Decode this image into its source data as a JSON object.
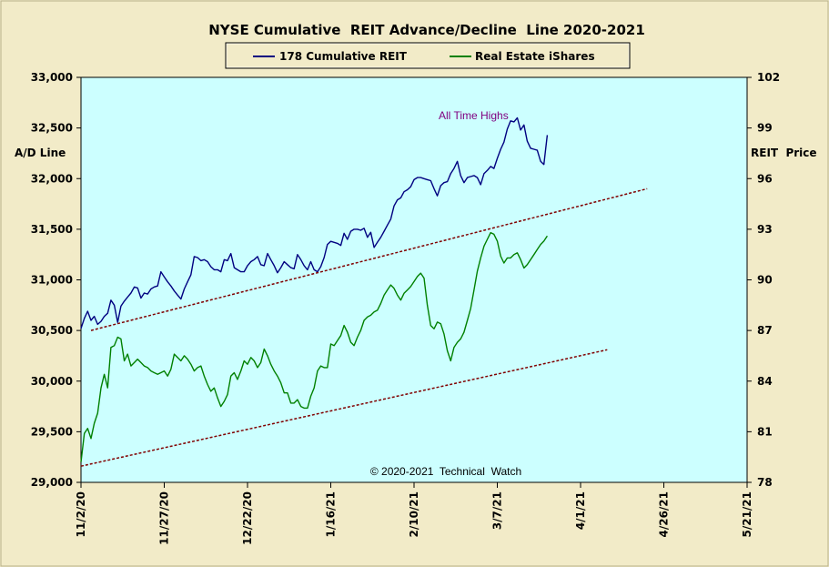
{
  "chart_data": {
    "type": "line",
    "title": "NYSE Cumulative  REIT Advance/Decline  Line 2020-2021",
    "legend": {
      "placement": "top-center",
      "entries": [
        "178 Cumulative REIT",
        "Real Estate iShares"
      ]
    },
    "ylabel_left": "A/D Line",
    "ylabel_right": "REIT  Price",
    "ylim_left": [
      29000,
      33000
    ],
    "ylim_right": [
      78,
      102
    ],
    "left_ticks": [
      "29,000",
      "29,500",
      "30,000",
      "30,500",
      "31,000",
      "31,500",
      "32,000",
      "32,500",
      "33,000"
    ],
    "left_tick_values": [
      29000,
      29500,
      30000,
      30500,
      31000,
      31500,
      32000,
      32500,
      33000
    ],
    "right_ticks": [
      "78",
      "81",
      "84",
      "87",
      "90",
      "93",
      "96",
      "99",
      "102"
    ],
    "right_tick_values": [
      78,
      81,
      84,
      87,
      90,
      93,
      96,
      99,
      102
    ],
    "x_ticks": [
      "11/2/20",
      "11/27/20",
      "12/22/20",
      "1/16/21",
      "2/10/21",
      "3/7/21",
      "4/1/21",
      "4/26/21",
      "5/21/21"
    ],
    "x_day_range": [
      0,
      200
    ],
    "grid": false,
    "colors": {
      "plot_bg": "#ccffff",
      "page_bg": "#f2ebc8",
      "ad_line": "#000080",
      "reit_line": "#008000",
      "trend": "#800000",
      "annotation": "#800080"
    },
    "annotations": [
      "All Time Highs"
    ],
    "copyright": "© 2020-2021  Technical  Watch",
    "series": [
      {
        "name": "178 Cumulative REIT",
        "axis": "left",
        "x": [
          0,
          1,
          2,
          3,
          4,
          5,
          6,
          7,
          8,
          9,
          10,
          11,
          12,
          13,
          14,
          15,
          16,
          17,
          18,
          19,
          20,
          21,
          22,
          23,
          24,
          25,
          26,
          27,
          28,
          29,
          30,
          31,
          32,
          33,
          34,
          35,
          36,
          37,
          38,
          39,
          40,
          41,
          42,
          43,
          44,
          45,
          46,
          47,
          48,
          49,
          50,
          51,
          52,
          53,
          54,
          55,
          56,
          57,
          58,
          59,
          60,
          61,
          62,
          63,
          64,
          65,
          66,
          67,
          68,
          69,
          70,
          71,
          72,
          73,
          74,
          75,
          76,
          77,
          78,
          79,
          80,
          81,
          82,
          83,
          84,
          85,
          86,
          87,
          88,
          89,
          90,
          91,
          92,
          93,
          94,
          95,
          96,
          97,
          98,
          99,
          100,
          101,
          102,
          103,
          104,
          105,
          106,
          107,
          108,
          109,
          110,
          111,
          112,
          113,
          114,
          115,
          116,
          117,
          118,
          119,
          120,
          121,
          122,
          123,
          124,
          125,
          126,
          127,
          128,
          129,
          130,
          131,
          132,
          133,
          134,
          135,
          136,
          137,
          138,
          139,
          140
        ],
        "values": [
          30520,
          30620,
          30690,
          30600,
          30640,
          30560,
          30590,
          30640,
          30670,
          30800,
          30750,
          30580,
          30740,
          30790,
          30830,
          30870,
          30930,
          30920,
          30820,
          30870,
          30860,
          30910,
          30930,
          30940,
          31080,
          31030,
          30980,
          30940,
          30890,
          30850,
          30810,
          30910,
          30980,
          31050,
          31230,
          31220,
          31190,
          31200,
          31180,
          31130,
          31100,
          31100,
          31080,
          31200,
          31190,
          31260,
          31120,
          31100,
          31080,
          31080,
          31140,
          31180,
          31200,
          31230,
          31150,
          31140,
          31260,
          31200,
          31140,
          31070,
          31120,
          31180,
          31150,
          31120,
          31110,
          31250,
          31200,
          31140,
          31100,
          31180,
          31100,
          31080,
          31130,
          31220,
          31350,
          31380,
          31370,
          31360,
          31340,
          31460,
          31400,
          31480,
          31500,
          31500,
          31490,
          31510,
          31420,
          31470,
          31320,
          31370,
          31420,
          31480,
          31540,
          31600,
          31730,
          31790,
          31810,
          31870,
          31890,
          31920,
          31990,
          32010,
          32010,
          32000,
          31990,
          31980,
          31900,
          31830,
          31930,
          31960,
          31970,
          32050,
          32100,
          32170,
          32030,
          31960,
          32010,
          32020,
          32030,
          32010,
          31940,
          32050,
          32080,
          32120,
          32100,
          32200,
          32290,
          32360,
          32490,
          32570,
          32560,
          32600,
          32480,
          32530,
          32370,
          32300,
          32290,
          32280,
          32170,
          32140,
          32430
        ]
      },
      {
        "name": "Real Estate iShares",
        "axis": "right",
        "x": [
          0,
          1,
          2,
          3,
          4,
          5,
          6,
          7,
          8,
          9,
          10,
          11,
          12,
          13,
          14,
          15,
          16,
          17,
          18,
          19,
          20,
          21,
          22,
          23,
          24,
          25,
          26,
          27,
          28,
          29,
          30,
          31,
          32,
          33,
          34,
          35,
          36,
          37,
          38,
          39,
          40,
          41,
          42,
          43,
          44,
          45,
          46,
          47,
          48,
          49,
          50,
          51,
          52,
          53,
          54,
          55,
          56,
          57,
          58,
          59,
          60,
          61,
          62,
          63,
          64,
          65,
          66,
          67,
          68,
          69,
          70,
          71,
          72,
          73,
          74,
          75,
          76,
          77,
          78,
          79,
          80,
          81,
          82,
          83,
          84,
          85,
          86,
          87,
          88,
          89,
          90,
          91,
          92,
          93,
          94,
          95,
          96,
          97,
          98,
          99,
          100,
          101,
          102,
          103,
          104,
          105,
          106,
          107,
          108,
          109,
          110,
          111,
          112,
          113,
          114,
          115,
          116,
          117,
          118,
          119,
          120,
          121,
          122,
          123,
          124,
          125,
          126,
          127,
          128,
          129,
          130,
          131,
          132,
          133,
          134,
          135,
          136,
          137,
          138,
          139,
          140
        ],
        "values": [
          79.2,
          80.9,
          81.2,
          80.6,
          81.5,
          82.1,
          83.6,
          84.4,
          83.6,
          86.0,
          86.1,
          86.6,
          86.5,
          85.2,
          85.6,
          84.9,
          85.1,
          85.3,
          85.1,
          84.9,
          84.8,
          84.6,
          84.5,
          84.4,
          84.5,
          84.6,
          84.3,
          84.7,
          85.6,
          85.4,
          85.2,
          85.5,
          85.3,
          85.0,
          84.6,
          84.8,
          84.9,
          84.3,
          83.8,
          83.4,
          83.6,
          83.0,
          82.5,
          82.8,
          83.2,
          84.3,
          84.5,
          84.1,
          84.6,
          85.2,
          85.0,
          85.4,
          85.2,
          84.8,
          85.1,
          85.9,
          85.5,
          85.0,
          84.6,
          84.3,
          83.9,
          83.3,
          83.3,
          82.7,
          82.7,
          82.9,
          82.5,
          82.4,
          82.4,
          83.1,
          83.6,
          84.6,
          84.9,
          84.8,
          84.8,
          86.2,
          86.1,
          86.4,
          86.7,
          87.3,
          86.9,
          86.3,
          86.1,
          86.6,
          87.0,
          87.6,
          87.8,
          87.9,
          88.1,
          88.2,
          88.6,
          89.1,
          89.4,
          89.7,
          89.5,
          89.1,
          88.8,
          89.2,
          89.4,
          89.6,
          89.9,
          90.2,
          90.4,
          90.1,
          88.5,
          87.3,
          87.1,
          87.5,
          87.4,
          86.8,
          85.8,
          85.2,
          86.0,
          86.3,
          86.5,
          86.9,
          87.6,
          88.3,
          89.4,
          90.5,
          91.3,
          92.0,
          92.4,
          92.8,
          92.7,
          92.3,
          91.4,
          91.0,
          91.3,
          91.3,
          91.5,
          91.6,
          91.2,
          90.7,
          90.9,
          91.2,
          91.5,
          91.8,
          92.1,
          92.3,
          92.6
        ]
      },
      {
        "name": "",
        "axis": "left",
        "style": "dashed-trendline",
        "x": [
          3,
          170
        ],
        "values": [
          30500,
          31900
        ]
      },
      {
        "name": "",
        "axis": "left",
        "style": "dashed-trendline",
        "x": [
          0,
          158
        ],
        "values": [
          29160,
          30310
        ]
      }
    ]
  }
}
